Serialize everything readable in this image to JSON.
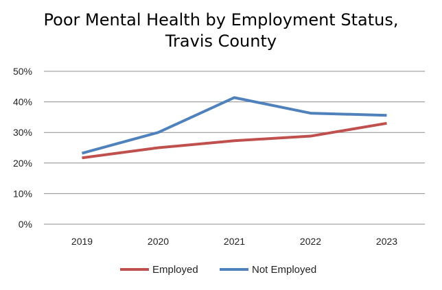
{
  "chart_data": {
    "type": "line",
    "title_lines": [
      "Poor Mental Health by Employment Status,",
      "Travis County"
    ],
    "categories": [
      "2019",
      "2020",
      "2021",
      "2022",
      "2023"
    ],
    "ylim": [
      0,
      50
    ],
    "yticks": [
      0,
      10,
      20,
      30,
      40,
      50
    ],
    "ytick_labels": [
      "0%",
      "10%",
      "20%",
      "30%",
      "40%",
      "50%"
    ],
    "grid": true,
    "legend_position": "bottom",
    "series": [
      {
        "name": "Employed",
        "color": "#c0504d",
        "values": [
          21.7,
          25.0,
          27.3,
          28.8,
          33.0
        ]
      },
      {
        "name": "Not Employed",
        "color": "#4f81bd",
        "values": [
          23.2,
          30.0,
          41.4,
          36.3,
          35.6
        ]
      }
    ]
  }
}
